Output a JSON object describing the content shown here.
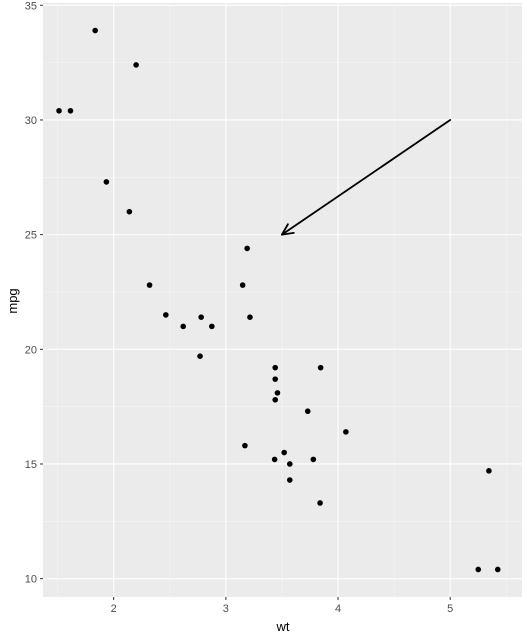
{
  "chart_data": {
    "type": "scatter",
    "title": "",
    "xlabel": "wt",
    "ylabel": "mpg",
    "xlim": [
      1.37,
      5.64
    ],
    "ylim": [
      9.2,
      35.1
    ],
    "x_ticks": [
      2,
      3,
      4,
      5
    ],
    "y_ticks": [
      10,
      15,
      20,
      25,
      30,
      35
    ],
    "x_tick_labels": [
      "2",
      "3",
      "4",
      "5"
    ],
    "y_tick_labels": [
      "10",
      "15",
      "20",
      "25",
      "30",
      "35"
    ],
    "grid": true,
    "background": "#ebebeb",
    "grid_major_color": "#ffffff",
    "point_color": "#000000",
    "points": [
      {
        "x": 2.62,
        "y": 21.0
      },
      {
        "x": 2.875,
        "y": 21.0
      },
      {
        "x": 2.32,
        "y": 22.8
      },
      {
        "x": 3.215,
        "y": 21.4
      },
      {
        "x": 3.44,
        "y": 18.7
      },
      {
        "x": 3.46,
        "y": 18.1
      },
      {
        "x": 3.57,
        "y": 14.3
      },
      {
        "x": 3.19,
        "y": 24.4
      },
      {
        "x": 3.15,
        "y": 22.8
      },
      {
        "x": 3.44,
        "y": 19.2
      },
      {
        "x": 3.44,
        "y": 17.8
      },
      {
        "x": 4.07,
        "y": 16.4
      },
      {
        "x": 3.73,
        "y": 17.3
      },
      {
        "x": 3.78,
        "y": 15.2
      },
      {
        "x": 5.25,
        "y": 10.4
      },
      {
        "x": 5.424,
        "y": 10.4
      },
      {
        "x": 5.345,
        "y": 14.7
      },
      {
        "x": 2.2,
        "y": 32.4
      },
      {
        "x": 1.615,
        "y": 30.4
      },
      {
        "x": 1.835,
        "y": 33.9
      },
      {
        "x": 2.465,
        "y": 21.5
      },
      {
        "x": 3.52,
        "y": 15.5
      },
      {
        "x": 3.435,
        "y": 15.2
      },
      {
        "x": 3.84,
        "y": 13.3
      },
      {
        "x": 3.845,
        "y": 19.2
      },
      {
        "x": 1.935,
        "y": 27.3
      },
      {
        "x": 2.14,
        "y": 26.0
      },
      {
        "x": 1.513,
        "y": 30.4
      },
      {
        "x": 3.17,
        "y": 15.8
      },
      {
        "x": 2.77,
        "y": 19.7
      },
      {
        "x": 3.57,
        "y": 15.0
      },
      {
        "x": 2.78,
        "y": 21.4
      }
    ],
    "annotations": [
      {
        "type": "arrow",
        "from": {
          "x": 5.0,
          "y": 30.0
        },
        "to": {
          "x": 3.5,
          "y": 25.0
        },
        "color": "#000000"
      }
    ]
  }
}
